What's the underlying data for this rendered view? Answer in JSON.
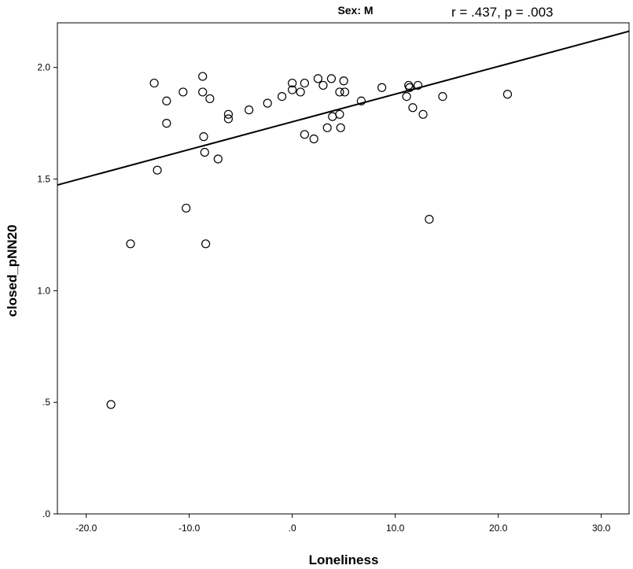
{
  "chart_data": {
    "type": "scatter",
    "title": "Sex: M",
    "annotation": "r = .437, p = .003",
    "xlabel": "Loneliness",
    "ylabel": "closed_pNN20",
    "xlim": [
      -22.8,
      32.7
    ],
    "ylim": [
      0.0,
      2.2
    ],
    "x_ticks": [
      -20,
      -10,
      0,
      10,
      20,
      30
    ],
    "x_tick_labels": [
      "-20.0",
      "-10.0",
      ".0",
      "10.0",
      "20.0",
      "30.0"
    ],
    "y_ticks": [
      0,
      0.5,
      1.0,
      1.5,
      2.0
    ],
    "y_tick_labels": [
      ".0",
      ".5",
      "1.0",
      "1.5",
      "2.0"
    ],
    "grid": false,
    "legend": "none",
    "marker": "open-circle",
    "fit_line": {
      "slope": 0.01241,
      "intercept": 1.7565
    },
    "points": [
      {
        "x": -17.6,
        "y": 0.49
      },
      {
        "x": -15.7,
        "y": 1.21
      },
      {
        "x": -13.4,
        "y": 1.93
      },
      {
        "x": -13.1,
        "y": 1.54
      },
      {
        "x": -12.2,
        "y": 1.85
      },
      {
        "x": -12.2,
        "y": 1.75
      },
      {
        "x": -10.6,
        "y": 1.89
      },
      {
        "x": -10.3,
        "y": 1.37
      },
      {
        "x": -8.7,
        "y": 1.96
      },
      {
        "x": -8.7,
        "y": 1.89
      },
      {
        "x": -8.6,
        "y": 1.69
      },
      {
        "x": -8.5,
        "y": 1.62
      },
      {
        "x": -8.4,
        "y": 1.21
      },
      {
        "x": -8.0,
        "y": 1.86
      },
      {
        "x": -7.2,
        "y": 1.59
      },
      {
        "x": -6.2,
        "y": 1.79
      },
      {
        "x": -6.2,
        "y": 1.77
      },
      {
        "x": -4.2,
        "y": 1.81
      },
      {
        "x": -2.4,
        "y": 1.84
      },
      {
        "x": -1.0,
        "y": 1.87
      },
      {
        "x": 0.0,
        "y": 1.93
      },
      {
        "x": 0.0,
        "y": 1.9
      },
      {
        "x": 0.8,
        "y": 1.89
      },
      {
        "x": 1.2,
        "y": 1.93
      },
      {
        "x": 1.2,
        "y": 1.7
      },
      {
        "x": 2.1,
        "y": 1.68
      },
      {
        "x": 2.5,
        "y": 1.95
      },
      {
        "x": 3.0,
        "y": 1.92
      },
      {
        "x": 3.4,
        "y": 1.73
      },
      {
        "x": 3.8,
        "y": 1.95
      },
      {
        "x": 3.9,
        "y": 1.78
      },
      {
        "x": 4.6,
        "y": 1.89
      },
      {
        "x": 4.6,
        "y": 1.79
      },
      {
        "x": 4.7,
        "y": 1.73
      },
      {
        "x": 5.0,
        "y": 1.94
      },
      {
        "x": 5.1,
        "y": 1.89
      },
      {
        "x": 6.7,
        "y": 1.85
      },
      {
        "x": 8.7,
        "y": 1.91
      },
      {
        "x": 11.1,
        "y": 1.87
      },
      {
        "x": 11.3,
        "y": 1.92
      },
      {
        "x": 11.4,
        "y": 1.91
      },
      {
        "x": 11.7,
        "y": 1.82
      },
      {
        "x": 12.2,
        "y": 1.92
      },
      {
        "x": 12.7,
        "y": 1.79
      },
      {
        "x": 13.3,
        "y": 1.32
      },
      {
        "x": 14.6,
        "y": 1.87
      },
      {
        "x": 20.9,
        "y": 1.88
      }
    ]
  }
}
